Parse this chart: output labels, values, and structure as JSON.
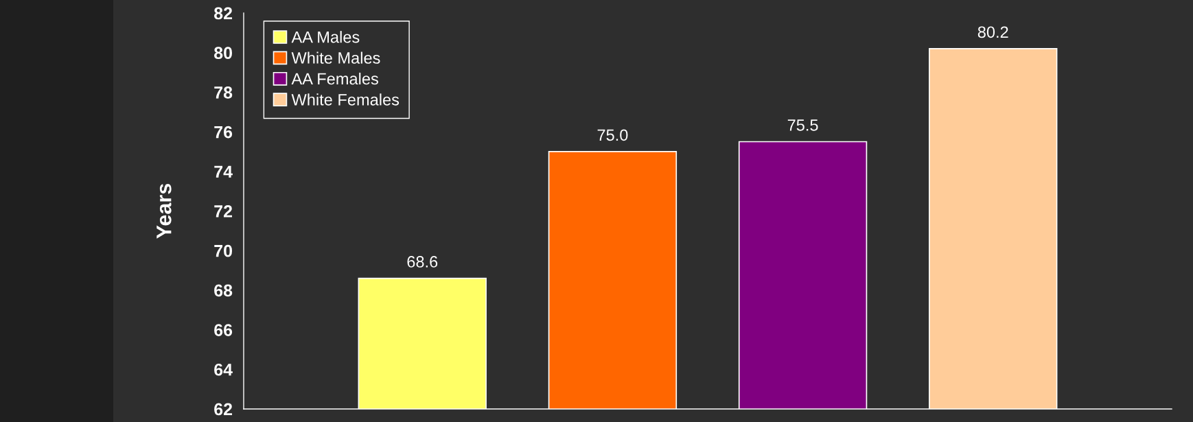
{
  "chart_data": {
    "type": "bar",
    "ylabel": "Years",
    "categories": [
      null
    ],
    "series": [
      {
        "name": "AA Males",
        "color": "#ffff66",
        "values": [
          68.6
        ],
        "value_labels": [
          "68.6"
        ]
      },
      {
        "name": "White Males",
        "color": "#ff6600",
        "values": [
          75.0
        ],
        "value_labels": [
          "75.0"
        ]
      },
      {
        "name": "AA Females",
        "color": "#800080",
        "values": [
          75.5
        ],
        "value_labels": [
          "75.5"
        ]
      },
      {
        "name": "White Females",
        "color": "#ffcc99",
        "values": [
          80.2
        ],
        "value_labels": [
          "80.2"
        ]
      }
    ],
    "ylim": [
      62,
      82
    ],
    "yticks": [
      62,
      64,
      66,
      68,
      70,
      72,
      74,
      76,
      78,
      80,
      82
    ],
    "grid": false,
    "legend": "top left",
    "tick_labels": "y"
  }
}
